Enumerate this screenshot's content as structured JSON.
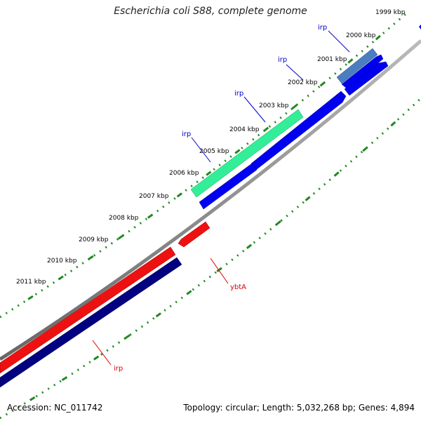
{
  "title": "Escherichia coli S88, complete genome",
  "accession_text": "Accession: NC_011742",
  "summary_text": "Topology: circular; Length: 5,032,268 bp; Genes: 4,894",
  "ruler_labels": [
    "1999 kbp",
    "2000 kbp",
    "2001 kbp",
    "2002 kbp",
    "2003 kbp",
    "2004 kbp",
    "2005 kbp",
    "2006 kbp",
    "2007 kbp",
    "2008 kbp",
    "2009 kbp",
    "2010 kbp",
    "2011 kbp"
  ],
  "features": [
    {
      "label": "irp",
      "strand": "forward",
      "color": "#4a7ec0"
    },
    {
      "label": "irp",
      "strand": "forward",
      "color": "#0000f0"
    },
    {
      "label": "irp",
      "strand": "forward",
      "color": "#0000f0"
    },
    {
      "label": "irp",
      "strand": "forward",
      "color": "#33ee99"
    },
    {
      "label": "",
      "strand": "forward",
      "color": "#0000f0"
    },
    {
      "label": "",
      "strand": "forward",
      "color": "#0000f0"
    },
    {
      "label": "ybtA",
      "strand": "reverse",
      "color": "#ee1111"
    },
    {
      "label": "",
      "strand": "reverse",
      "color": "#ee1111"
    },
    {
      "label": "irp",
      "strand": "reverse",
      "color": "#000080"
    }
  ],
  "colors": {
    "backbone": "#888888",
    "tick": "#228822",
    "forward_label": "#0000cc",
    "reverse_label": "#dd0000"
  }
}
